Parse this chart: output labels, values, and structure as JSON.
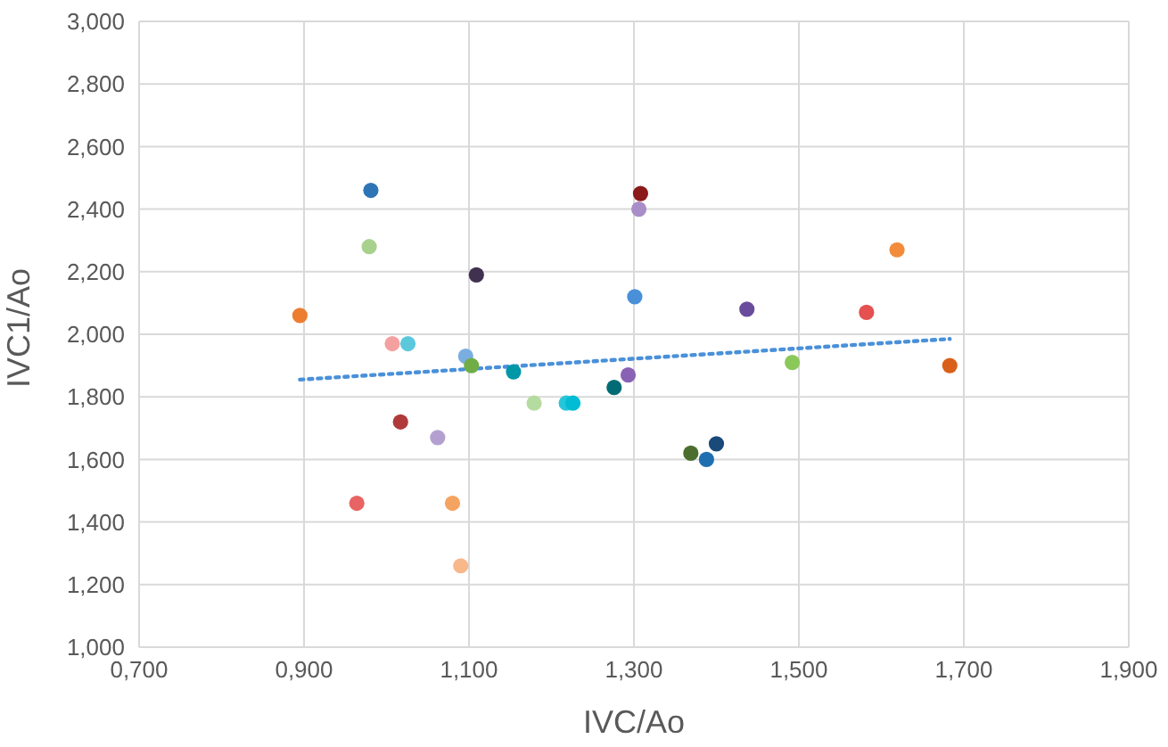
{
  "chart_data": {
    "type": "scatter",
    "xlabel": "IVC/Ao",
    "ylabel": "IVC1/Ao",
    "xlim": [
      0.7,
      1.9
    ],
    "xticks": [
      {
        "value": 0.7,
        "label": "0,700"
      },
      {
        "value": 0.9,
        "label": "0,900"
      },
      {
        "value": 1.1,
        "label": "1,100"
      },
      {
        "value": 1.3,
        "label": "1,300"
      },
      {
        "value": 1.5,
        "label": "1,500"
      },
      {
        "value": 1.7,
        "label": "1,700"
      },
      {
        "value": 1.9,
        "label": "1,900"
      }
    ],
    "ylim": [
      1.0,
      3.0
    ],
    "yticks": [
      {
        "value": 1.0,
        "label": "1,000"
      },
      {
        "value": 1.2,
        "label": "1,200"
      },
      {
        "value": 1.4,
        "label": "1,400"
      },
      {
        "value": 1.6,
        "label": "1,600"
      },
      {
        "value": 1.8,
        "label": "1,800"
      },
      {
        "value": 2.0,
        "label": "2,000"
      },
      {
        "value": 2.2,
        "label": "2,200"
      },
      {
        "value": 2.4,
        "label": "2,400"
      },
      {
        "value": 2.6,
        "label": "2,600"
      },
      {
        "value": 2.8,
        "label": "2,800"
      },
      {
        "value": 3.0,
        "label": "3,000"
      }
    ],
    "grid": true,
    "legend": false,
    "series": [
      {
        "marker": "circle",
        "x": [
          0.981,
          0.979,
          1.109,
          0.895,
          1.007,
          1.026,
          1.096,
          1.103,
          1.154,
          1.179,
          1.218,
          1.226,
          1.017,
          1.062,
          0.964,
          1.08,
          1.09,
          1.308,
          1.306,
          1.301,
          1.437,
          1.582,
          1.619,
          1.492,
          1.683,
          1.293,
          1.276,
          1.369,
          1.388,
          1.4
        ],
        "values": [
          2.46,
          2.28,
          2.19,
          2.06,
          1.97,
          1.97,
          1.93,
          1.9,
          1.88,
          1.78,
          1.78,
          1.78,
          1.72,
          1.67,
          1.46,
          1.46,
          1.26,
          2.45,
          2.4,
          2.12,
          2.08,
          2.07,
          2.27,
          1.91,
          1.9,
          1.87,
          1.83,
          1.62,
          1.6,
          1.65
        ],
        "colors": [
          "#2e75b6",
          "#a9d18e",
          "#403151",
          "#ed7d31",
          "#f4a0a0",
          "#5bc8dc",
          "#7aaee0",
          "#70ad47",
          "#0097a7",
          "#b5dca0",
          "#26c6da",
          "#00bcd4",
          "#b03a3a",
          "#b4a0d0",
          "#e86464",
          "#f4a460",
          "#f8b88a",
          "#8b1a1a",
          "#a98dc8",
          "#4a90d9",
          "#6a4c9c",
          "#e55050",
          "#f28c3c",
          "#8bc85a",
          "#d9601a",
          "#8a62b5",
          "#006b75",
          "#4b6e2e",
          "#1f6fb0",
          "#1a4a7a"
        ]
      },
      {
        "type": "line",
        "x": [
          0.895,
          1.683
        ],
        "values": [
          1.855,
          1.985
        ],
        "color": "#4a90d9",
        "line_style": "dotted"
      }
    ]
  }
}
